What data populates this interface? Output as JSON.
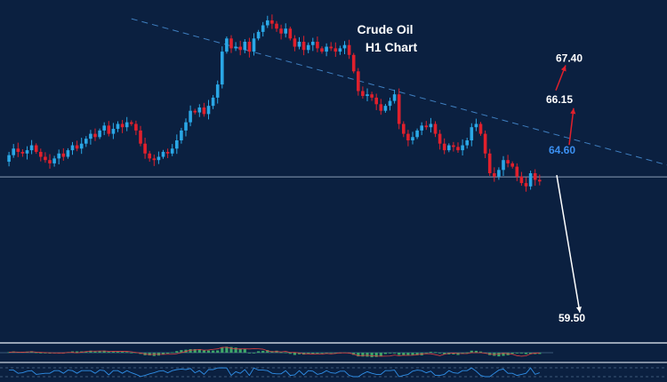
{
  "chart_data": {
    "type": "candlestick",
    "title": "Crude Oil",
    "subtitle": "H1 Chart",
    "xlabel": "",
    "ylabel": "",
    "ylim": [
      58.9,
      68.9
    ],
    "grid": false,
    "colors": {
      "background": "#0b2040",
      "up": "#2aa7e6",
      "down": "#e0202c",
      "trendline": "#3f7fc0",
      "support": "#8a9bb4",
      "arrow_up": "#e0202c",
      "arrow_down": "#ffffff",
      "level_highlight": "#3b8ff0"
    },
    "closes": [
      64.25,
      64.45,
      64.65,
      64.55,
      64.5,
      64.6,
      64.75,
      64.55,
      64.4,
      64.3,
      64.2,
      64.35,
      64.5,
      64.4,
      64.6,
      64.75,
      64.65,
      64.8,
      64.95,
      65.1,
      65.0,
      65.2,
      65.35,
      65.1,
      65.25,
      65.4,
      65.3,
      65.45,
      65.4,
      65.2,
      64.8,
      64.5,
      64.35,
      64.3,
      64.4,
      64.55,
      64.5,
      64.65,
      64.9,
      65.2,
      65.45,
      65.8,
      65.75,
      65.9,
      65.7,
      65.95,
      66.2,
      66.6,
      67.6,
      68.0,
      67.7,
      67.75,
      67.65,
      67.9,
      67.6,
      68.0,
      68.2,
      68.4,
      68.55,
      68.45,
      68.3,
      68.15,
      68.3,
      68.0,
      67.75,
      67.9,
      67.65,
      67.8,
      67.9,
      67.7,
      67.6,
      67.75,
      67.7,
      67.6,
      67.7,
      67.8,
      67.5,
      67.0,
      66.4,
      66.25,
      66.3,
      66.2,
      66.0,
      65.8,
      65.95,
      66.1,
      66.3,
      65.4,
      65.1,
      64.9,
      65.0,
      65.2,
      65.35,
      65.3,
      65.4,
      65.1,
      64.8,
      64.6,
      64.75,
      64.7,
      64.6,
      64.75,
      64.9,
      65.3,
      65.4,
      65.1,
      64.5,
      63.9,
      63.8,
      64.0,
      64.3,
      64.2,
      64.1,
      63.8,
      63.6,
      63.5,
      63.9,
      63.7,
      63.65
    ],
    "levels": [
      {
        "label": "67.40",
        "value": 67.4
      },
      {
        "label": "66.15",
        "value": 66.15
      },
      {
        "label": "64.60",
        "value": 64.6
      },
      {
        "label": "59.50",
        "value": 59.5
      }
    ],
    "trendline": {
      "from": [
        28.0,
        68.6
      ],
      "to": [
        200,
        62.12
      ]
    },
    "support": 63.79
  }
}
